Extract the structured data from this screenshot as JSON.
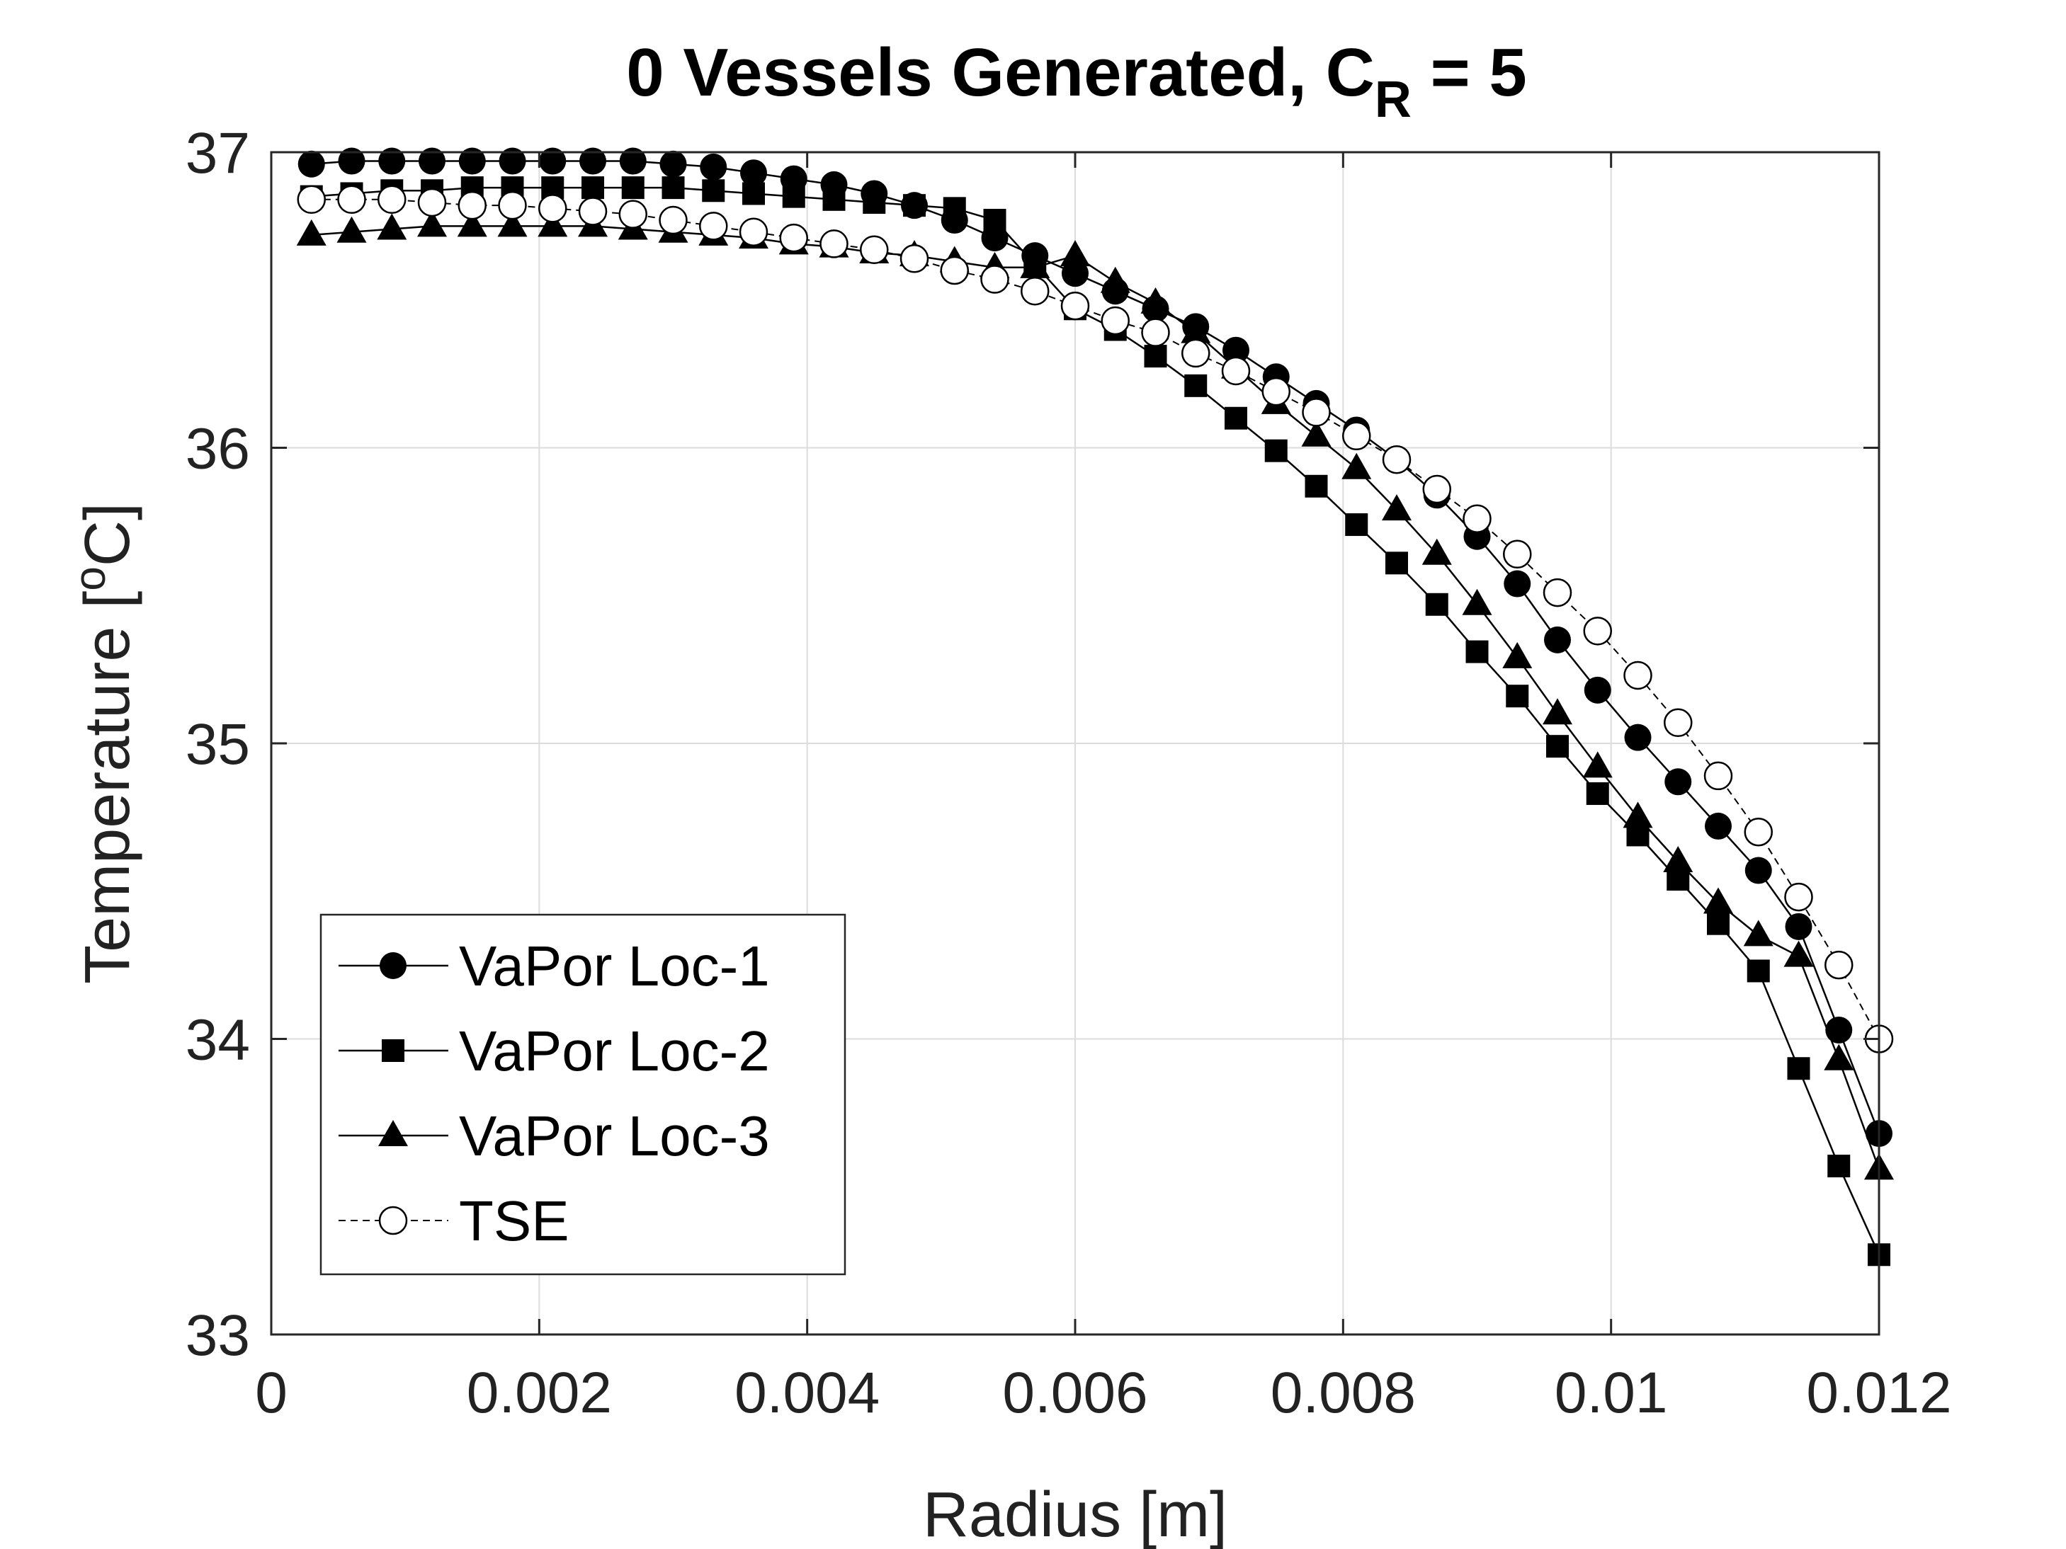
{
  "chart_data": {
    "type": "line",
    "title": "0 Vessels Generated, C",
    "title_subscript": "R",
    "title_suffix": " = 5",
    "xlabel": "Radius [m]",
    "ylabel_prefix": "Temperature [",
    "ylabel_sup": "o",
    "ylabel_suffix": "C]",
    "xlim": [
      0,
      0.012
    ],
    "ylim": [
      33,
      37
    ],
    "xticks": [
      0,
      0.002,
      0.004,
      0.006,
      0.008,
      0.01,
      0.012
    ],
    "xtick_labels": [
      "0",
      "0.002",
      "0.004",
      "0.006",
      "0.008",
      "0.01",
      "0.012"
    ],
    "yticks": [
      33,
      34,
      35,
      36,
      37
    ],
    "ytick_labels": [
      "33",
      "34",
      "35",
      "36",
      "37"
    ],
    "grid": true,
    "legend_position": "bottom-left",
    "x": [
      0.0003,
      0.0006,
      0.0009,
      0.0012,
      0.0015,
      0.0018,
      0.0021,
      0.0024,
      0.0027,
      0.003,
      0.0033,
      0.0036,
      0.0039,
      0.0042,
      0.0045,
      0.0048,
      0.0051,
      0.0054,
      0.0057,
      0.006,
      0.0063,
      0.0066,
      0.0069,
      0.0072,
      0.0075,
      0.0078,
      0.0081,
      0.0084,
      0.0087,
      0.009,
      0.0093,
      0.0096,
      0.0099,
      0.0102,
      0.0105,
      0.0108,
      0.0111,
      0.0114,
      0.0117,
      0.012
    ],
    "series": [
      {
        "name": "VaPor Loc-1",
        "marker": "circle-filled",
        "line": "solid",
        "color": "#000000",
        "values": [
          36.96,
          36.97,
          36.97,
          36.97,
          36.97,
          36.97,
          36.97,
          36.97,
          36.97,
          36.96,
          36.95,
          36.93,
          36.91,
          36.89,
          36.86,
          36.82,
          36.77,
          36.71,
          36.65,
          36.59,
          36.53,
          36.47,
          36.41,
          36.33,
          36.24,
          36.15,
          36.06,
          35.96,
          35.84,
          35.7,
          35.54,
          35.35,
          35.18,
          35.02,
          34.87,
          34.72,
          34.57,
          34.38,
          34.03,
          33.68
        ]
      },
      {
        "name": "VaPor Loc-2",
        "marker": "square-filled",
        "line": "solid",
        "color": "#000000",
        "values": [
          36.85,
          36.86,
          36.87,
          36.87,
          36.88,
          36.88,
          36.88,
          36.88,
          36.88,
          36.88,
          36.87,
          36.86,
          36.85,
          36.84,
          36.83,
          36.82,
          36.81,
          36.77,
          36.62,
          36.47,
          36.4,
          36.31,
          36.21,
          36.1,
          35.99,
          35.87,
          35.74,
          35.61,
          35.47,
          35.31,
          35.16,
          34.99,
          34.83,
          34.69,
          34.54,
          34.39,
          34.23,
          33.9,
          33.57,
          33.27
        ]
      },
      {
        "name": "VaPor Loc-3",
        "marker": "triangle-filled",
        "line": "solid",
        "color": "#000000",
        "values": [
          36.72,
          36.73,
          36.74,
          36.75,
          36.75,
          36.75,
          36.75,
          36.75,
          36.74,
          36.73,
          36.72,
          36.71,
          36.69,
          36.68,
          36.66,
          36.65,
          36.63,
          36.61,
          36.61,
          36.65,
          36.56,
          36.49,
          36.39,
          36.27,
          36.15,
          36.04,
          35.93,
          35.79,
          35.64,
          35.47,
          35.29,
          35.1,
          34.92,
          34.75,
          34.6,
          34.46,
          34.35,
          34.28,
          33.93,
          33.56
        ]
      },
      {
        "name": "TSE",
        "marker": "circle-open",
        "line": "dashed",
        "color": "#000000",
        "values": [
          36.84,
          36.84,
          36.84,
          36.83,
          36.82,
          36.82,
          36.81,
          36.8,
          36.79,
          36.77,
          36.75,
          36.73,
          36.71,
          36.69,
          36.67,
          36.64,
          36.6,
          36.57,
          36.53,
          36.48,
          36.43,
          36.39,
          36.32,
          36.26,
          36.19,
          36.12,
          36.04,
          35.96,
          35.86,
          35.76,
          35.64,
          35.51,
          35.38,
          35.23,
          35.07,
          34.89,
          34.7,
          34.48,
          34.25,
          34.0
        ]
      }
    ]
  }
}
